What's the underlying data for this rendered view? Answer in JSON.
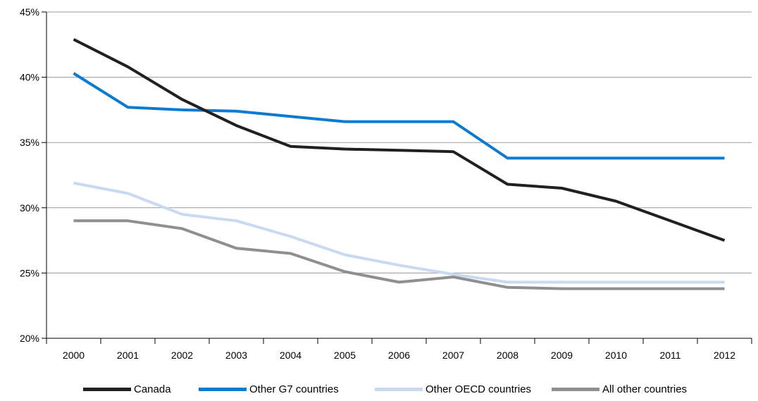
{
  "chart_data": {
    "type": "line",
    "title": "",
    "xlabel": "",
    "ylabel": "",
    "categories": [
      "2000",
      "2001",
      "2002",
      "2003",
      "2004",
      "2005",
      "2006",
      "2007",
      "2008",
      "2009",
      "2010",
      "2011",
      "2012"
    ],
    "ylim": [
      20,
      45
    ],
    "yticks": [
      20,
      25,
      30,
      35,
      40,
      45
    ],
    "ytick_labels": [
      "20%",
      "25%",
      "30%",
      "35%",
      "40%",
      "45%"
    ],
    "grid": "horizontal",
    "legend_position": "bottom",
    "series": [
      {
        "name": "Canada",
        "color": "#231f20",
        "values": [
          42.9,
          40.8,
          38.3,
          36.3,
          34.7,
          34.5,
          34.4,
          34.3,
          31.8,
          31.5,
          30.5,
          29.0,
          27.5
        ]
      },
      {
        "name": "Other G7 countries",
        "color": "#0a7bd0",
        "values": [
          40.3,
          37.7,
          37.5,
          37.4,
          37.0,
          36.6,
          36.6,
          36.6,
          33.8,
          33.8,
          33.8,
          33.8,
          33.8
        ]
      },
      {
        "name": "Other OECD countries",
        "color": "#c9d9f1",
        "values": [
          31.9,
          31.1,
          29.5,
          29.0,
          27.8,
          26.4,
          25.6,
          24.9,
          24.3,
          24.3,
          24.3,
          24.3,
          24.3
        ]
      },
      {
        "name": "All other countries",
        "color": "#8f8f91",
        "values": [
          29.0,
          29.0,
          28.4,
          26.9,
          26.5,
          25.1,
          24.3,
          24.7,
          23.9,
          23.8,
          23.8,
          23.8,
          23.8
        ]
      }
    ]
  }
}
